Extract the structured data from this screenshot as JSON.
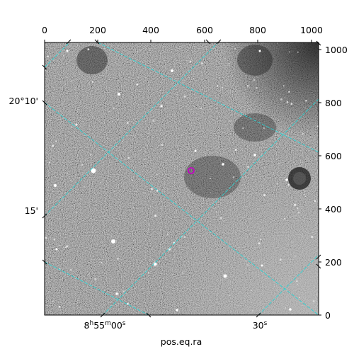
{
  "figure": {
    "top_ticks": [
      "0",
      "200",
      "400",
      "600",
      "800",
      "1000"
    ],
    "right_ticks": [
      "1000",
      "800",
      "600",
      "400",
      "200",
      "0"
    ],
    "left_ticks": [
      "20°10'",
      "15'"
    ],
    "bottom_ticks": {
      "ra_1": {
        "hours": "8",
        "h_unit": "h",
        "minutes": "55",
        "m_unit": "m",
        "seconds": "00",
        "s_unit": "s"
      },
      "ra_2": {
        "seconds": "30",
        "s_unit": "s"
      }
    },
    "xlabel": "pos.eq.ra",
    "colors": {
      "grid": "#2ad5d5",
      "marker": "#c400c4",
      "image_base": "#4a4a4a"
    }
  }
}
